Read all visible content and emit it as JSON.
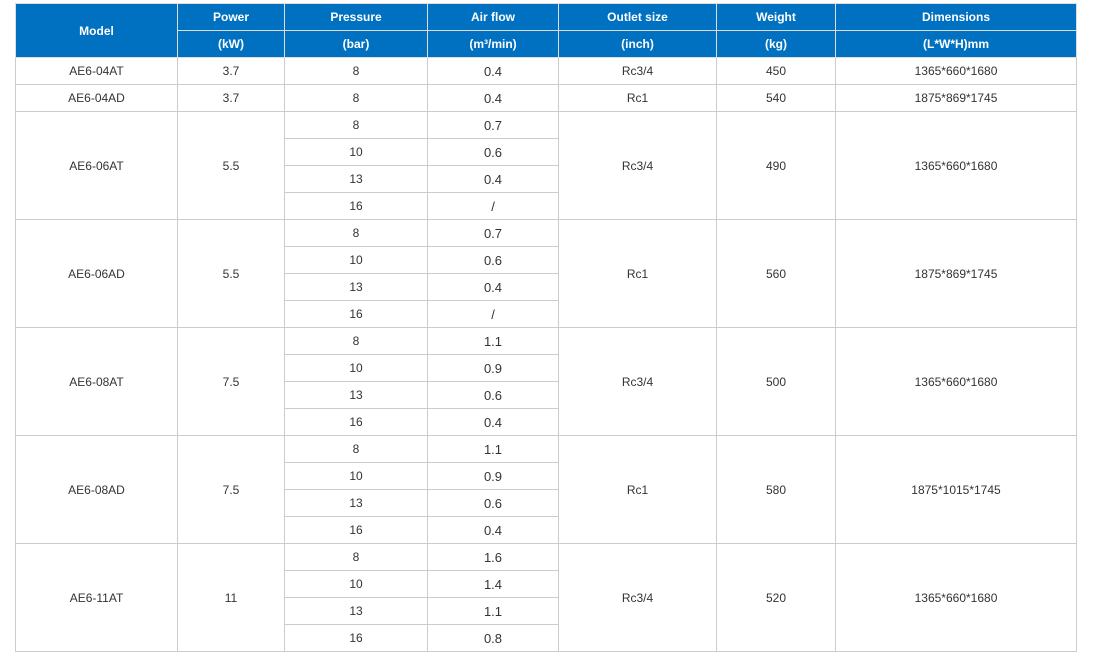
{
  "colors": {
    "header_bg": "#0070c0",
    "header_text": "#ffffff",
    "border": "#cccccc"
  },
  "header": {
    "model": "Model",
    "columns": [
      {
        "label": "Power",
        "unit": "(kW)"
      },
      {
        "label": "Pressure",
        "unit": "(bar)"
      },
      {
        "label": "Air flow",
        "unit": "(m³/min)"
      },
      {
        "label": "Outlet size",
        "unit": "(inch)"
      },
      {
        "label": "Weight",
        "unit": "(kg)"
      },
      {
        "label": "Dimensions",
        "unit": "(L*W*H)mm"
      }
    ]
  },
  "groups": [
    {
      "model": "AE6-04AT",
      "power": "3.7",
      "outlet": "Rc3/4",
      "weight": "450",
      "dimensions": "1365*660*1680",
      "rows": [
        {
          "pressure": "8",
          "airflow": "0.4"
        }
      ]
    },
    {
      "model": "AE6-04AD",
      "power": "3.7",
      "outlet": "Rc1",
      "weight": "540",
      "dimensions": "1875*869*1745",
      "rows": [
        {
          "pressure": "8",
          "airflow": "0.4"
        }
      ]
    },
    {
      "model": "AE6-06AT",
      "power": "5.5",
      "outlet": "Rc3/4",
      "weight": "490",
      "dimensions": "1365*660*1680",
      "rows": [
        {
          "pressure": "8",
          "airflow": "0.7"
        },
        {
          "pressure": "10",
          "airflow": "0.6"
        },
        {
          "pressure": "13",
          "airflow": "0.4"
        },
        {
          "pressure": "16",
          "airflow": "/"
        }
      ]
    },
    {
      "model": "AE6-06AD",
      "power": "5.5",
      "outlet": "Rc1",
      "weight": "560",
      "dimensions": "1875*869*1745",
      "rows": [
        {
          "pressure": "8",
          "airflow": "0.7"
        },
        {
          "pressure": "10",
          "airflow": "0.6"
        },
        {
          "pressure": "13",
          "airflow": "0.4"
        },
        {
          "pressure": "16",
          "airflow": "/"
        }
      ]
    },
    {
      "model": "AE6-08AT",
      "power": "7.5",
      "outlet": "Rc3/4",
      "weight": "500",
      "dimensions": "1365*660*1680",
      "rows": [
        {
          "pressure": "8",
          "airflow": "1.1"
        },
        {
          "pressure": "10",
          "airflow": "0.9"
        },
        {
          "pressure": "13",
          "airflow": "0.6"
        },
        {
          "pressure": "16",
          "airflow": "0.4"
        }
      ]
    },
    {
      "model": "AE6-08AD",
      "power": "7.5",
      "outlet": "Rc1",
      "weight": "580",
      "dimensions": "1875*1015*1745",
      "rows": [
        {
          "pressure": "8",
          "airflow": "1.1"
        },
        {
          "pressure": "10",
          "airflow": "0.9"
        },
        {
          "pressure": "13",
          "airflow": "0.6"
        },
        {
          "pressure": "16",
          "airflow": "0.4"
        }
      ]
    },
    {
      "model": "AE6-11AT",
      "power": "11",
      "outlet": "Rc3/4",
      "weight": "520",
      "dimensions": "1365*660*1680",
      "rows": [
        {
          "pressure": "8",
          "airflow": "1.6"
        },
        {
          "pressure": "10",
          "airflow": "1.4"
        },
        {
          "pressure": "13",
          "airflow": "1.1"
        },
        {
          "pressure": "16",
          "airflow": "0.8"
        }
      ]
    }
  ]
}
